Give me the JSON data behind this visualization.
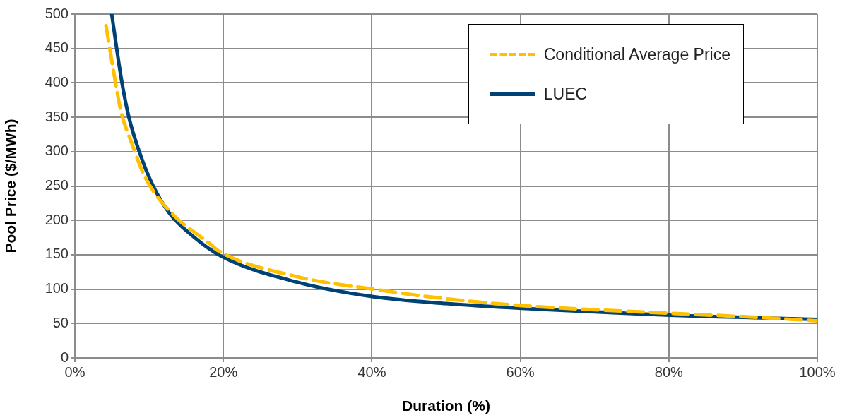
{
  "chart_data": {
    "type": "line",
    "xlabel": "Duration (%)",
    "ylabel": "Pool Price ($/MWh)",
    "xlim": [
      0,
      100
    ],
    "xticks": [
      {
        "value": 0,
        "label": "0%"
      },
      {
        "value": 20,
        "label": "20%"
      },
      {
        "value": 40,
        "label": "40%"
      },
      {
        "value": 60,
        "label": "60%"
      },
      {
        "value": 80,
        "label": "80%"
      },
      {
        "value": 100,
        "label": "100%"
      }
    ],
    "ylim": [
      0,
      500
    ],
    "yticks": [
      0,
      50,
      100,
      150,
      200,
      250,
      300,
      350,
      400,
      450,
      500
    ],
    "grid": true,
    "legend": "top right",
    "marker": "none",
    "series": [
      {
        "name": "Conditional Average Price",
        "color": "#ffc000",
        "line_style": "dashed",
        "x": [
          4.2,
          5.1,
          6.2,
          7.6,
          9.5,
          13,
          18.3,
          19.3,
          30,
          40.2,
          50,
          60.2,
          70,
          80,
          90,
          100
        ],
        "values": [
          483,
          424,
          359,
          314,
          262,
          211,
          165,
          156,
          118,
          100,
          86,
          76,
          70,
          65,
          60,
          54
        ]
      },
      {
        "name": "LUEC",
        "color": "#004276",
        "line_style": "solid",
        "x": [
          4.96,
          6.3,
          7.3,
          8.9,
          10.5,
          12.7,
          15.9,
          19.7,
          30,
          40.2,
          50,
          60.2,
          70,
          80.1,
          90,
          100
        ],
        "values": [
          500,
          403,
          349,
          293,
          251,
          211,
          177,
          148,
          110,
          89,
          79,
          72,
          67,
          62,
          59,
          56
        ]
      }
    ]
  }
}
